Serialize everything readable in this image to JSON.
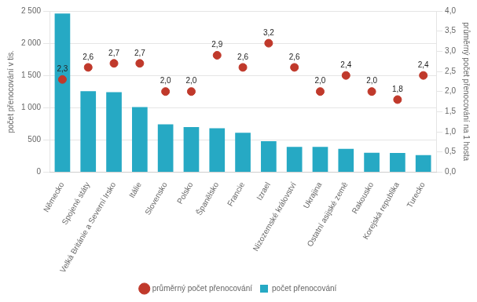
{
  "chart_data": {
    "type": "bar",
    "categories": [
      "Německo",
      "Spojené státy",
      "Velká Británie a Severní Irsko",
      "Itálie",
      "Slovensko",
      "Polsko",
      "Španělsko",
      "Francie",
      "Izrael",
      "Nizozemské království",
      "Ukrajina",
      "Ostatní asijské země",
      "Rakousko",
      "Korejská republika",
      "Turecko"
    ],
    "series": [
      {
        "name": "počet přenocování",
        "type": "bar",
        "color": "#26A9C4",
        "values": [
          2460,
          1255,
          1240,
          1010,
          740,
          700,
          680,
          610,
          480,
          390,
          390,
          360,
          300,
          298,
          265
        ]
      },
      {
        "name": "průměrný počet přenocování",
        "type": "scatter",
        "axis": "y2",
        "color": "#C0392B",
        "marker": "circle",
        "data_labels": true,
        "values": [
          2.3,
          2.6,
          2.7,
          2.7,
          2.0,
          2.0,
          2.9,
          2.6,
          3.2,
          2.6,
          2.0,
          2.4,
          2.0,
          1.8,
          2.4
        ],
        "value_labels": [
          "2,3",
          "2,6",
          "2,7",
          "2,7",
          "2,0",
          "2,0",
          "2,9",
          "2,6",
          "3,2",
          "2,6",
          "2,0",
          "2,4",
          "2,0",
          "1,8",
          "2,4"
        ]
      }
    ],
    "ylabel": "počet přenocování v tis.",
    "y2label": "průměrný počet přenocování na 1 hosta",
    "ylim": [
      0,
      2500
    ],
    "yticks": [
      0,
      500,
      {
        "value": 1000,
        "label": "1 000"
      },
      {
        "value": 1500,
        "label": "1 500"
      },
      {
        "value": 2000,
        "label": "2 000"
      },
      {
        "value": 2500,
        "label": "2 500"
      }
    ],
    "y2lim": [
      0.0,
      4.0
    ],
    "y2ticks": [
      {
        "value": 0.0,
        "label": "0,0"
      },
      {
        "value": 0.5,
        "label": "0,5"
      },
      {
        "value": 1.0,
        "label": "1,0"
      },
      {
        "value": 1.5,
        "label": "1,5"
      },
      {
        "value": 2.0,
        "label": "2,0"
      },
      {
        "value": 2.5,
        "label": "2,5"
      },
      {
        "value": 3.0,
        "label": "3,0"
      },
      {
        "value": 3.5,
        "label": "3,5"
      },
      {
        "value": 4.0,
        "label": "4,0"
      }
    ],
    "grid": true,
    "legend": "bottom"
  }
}
